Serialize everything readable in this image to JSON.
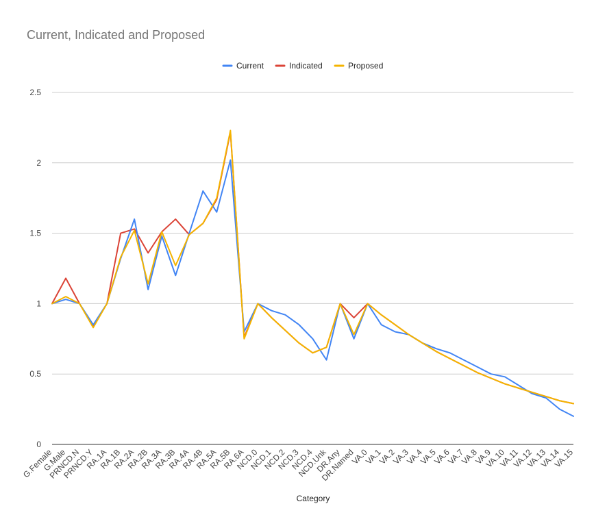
{
  "chart_data": {
    "type": "line",
    "title": "Current, Indicated and Proposed",
    "xlabel": "Category",
    "ylabel": "",
    "ylim": [
      0,
      2.5
    ],
    "yticks": [
      0,
      0.5,
      1,
      1.5,
      2,
      2.5
    ],
    "ytick_labels": [
      "0",
      "0.5",
      "1",
      "1.5",
      "2",
      "2.5"
    ],
    "grid": true,
    "legend_position": "top",
    "categories": [
      "G.Female",
      "G.Male",
      "PRNCD.N",
      "PRNCD.Y",
      "RA.1A",
      "RA.1B",
      "RA.2A",
      "RA.2B",
      "RA.3A",
      "RA.3B",
      "RA.4A",
      "RA.4B",
      "RA.5A",
      "RA.5B",
      "RA.6A",
      "NCD.0",
      "NCD.1",
      "NCD.2",
      "NCD.3",
      "NCD.4",
      "NCD.Unk",
      "DR.Any",
      "DR.Named",
      "VA.0",
      "VA.1",
      "VA.2",
      "VA.3",
      "VA.4",
      "VA.5",
      "VA.6",
      "VA.7",
      "VA.8",
      "VA.9",
      "VA.10",
      "VA.11",
      "VA.12",
      "VA.13",
      "VA.14",
      "VA.15"
    ],
    "series": [
      {
        "name": "Current",
        "color": "#4285f4",
        "values": [
          1.0,
          1.03,
          1.0,
          0.85,
          1.0,
          1.32,
          1.6,
          1.1,
          1.48,
          1.2,
          1.5,
          1.8,
          1.65,
          2.02,
          0.8,
          1.0,
          0.95,
          0.92,
          0.85,
          0.75,
          0.6,
          1.0,
          0.75,
          1.0,
          0.85,
          0.8,
          0.78,
          0.72,
          0.68,
          0.65,
          0.6,
          0.55,
          0.5,
          0.48,
          0.42,
          0.36,
          0.33,
          0.25,
          0.2
        ]
      },
      {
        "name": "Indicated",
        "color": "#db4437",
        "values": [
          1.0,
          1.18,
          1.0,
          0.84,
          1.0,
          1.5,
          1.53,
          1.36,
          1.51,
          1.6,
          1.49,
          1.57,
          1.74,
          2.22,
          0.76,
          1.0,
          0.9,
          0.81,
          0.72,
          0.65,
          0.69,
          1.0,
          0.9,
          1.0,
          0.92,
          0.85,
          0.78,
          0.72,
          0.66,
          0.61,
          0.56,
          0.51,
          0.47,
          0.43,
          0.4,
          0.37,
          0.34,
          0.31,
          0.29
        ]
      },
      {
        "name": "Proposed",
        "color": "#f4b400",
        "values": [
          1.0,
          1.05,
          1.0,
          0.83,
          1.0,
          1.33,
          1.52,
          1.14,
          1.51,
          1.27,
          1.49,
          1.57,
          1.75,
          2.23,
          0.75,
          1.0,
          0.9,
          0.81,
          0.72,
          0.65,
          0.69,
          1.0,
          0.78,
          1.0,
          0.92,
          0.85,
          0.78,
          0.72,
          0.66,
          0.61,
          0.56,
          0.51,
          0.47,
          0.43,
          0.4,
          0.37,
          0.34,
          0.31,
          0.29
        ]
      }
    ]
  }
}
